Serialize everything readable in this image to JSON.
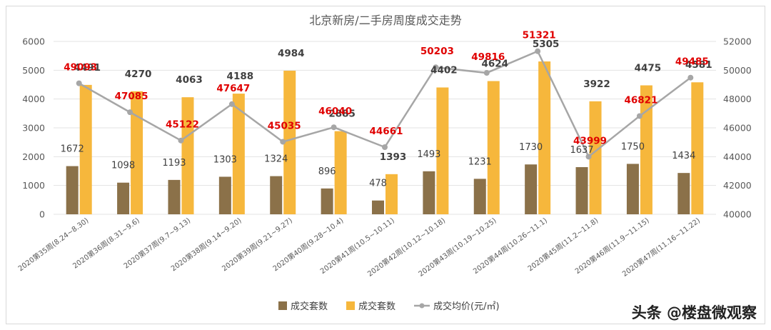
{
  "chart_data": {
    "type": "bar",
    "title": "北京新房/二手房周度成交走势",
    "categories": [
      "2020第35周(8.24~8.30)",
      "2020第36周(8.31~9.6)",
      "2020第37周(9.7~9.13)",
      "2020第38周(9.14~9.20)",
      "2020第39周(9.21~9.27)",
      "2020第40周(9.28~10.4)",
      "2020第41周(10.5~10.11)",
      "2020第42周(10.12~10.18)",
      "2020第43周(10.19~10.25)",
      "2020第44周(10.26~11.1)",
      "2020第45周(11.2~11.8)",
      "2020第46周(11.9~11.15)",
      "2020第47周(11.16~11.22)"
    ],
    "series": [
      {
        "name": "成交套数",
        "type": "bar",
        "axis": "left",
        "color": "#8B7149",
        "values": [
          1672,
          1098,
          1193,
          1303,
          1324,
          896,
          478,
          1493,
          1231,
          1730,
          1637,
          1750,
          1434
        ]
      },
      {
        "name": "成交套数",
        "type": "bar",
        "axis": "left",
        "color": "#F6B73C",
        "values": [
          4491,
          4270,
          4063,
          4188,
          4984,
          2885,
          1393,
          4402,
          4624,
          5305,
          3922,
          4475,
          4581
        ]
      },
      {
        "name": "成交均价(元/㎡)",
        "type": "line",
        "axis": "right",
        "color": "#A6A6A6",
        "label_color": "#E00000",
        "values": [
          49093,
          47085,
          45122,
          47647,
          45035,
          46040,
          44661,
          50203,
          49816,
          51321,
          43999,
          46821,
          49485
        ]
      }
    ],
    "yticks_left": [
      "0",
      "1000",
      "2000",
      "3000",
      "4000",
      "5000",
      "6000"
    ],
    "yticks_right": [
      "40000",
      "42000",
      "44000",
      "46000",
      "48000",
      "50000",
      "52000"
    ],
    "ylim_left": [
      0,
      6000
    ],
    "ylim_right": [
      40000,
      52000
    ],
    "grid": true,
    "legend_position": "bottom"
  },
  "watermark": "头条 @楼盘微观察"
}
